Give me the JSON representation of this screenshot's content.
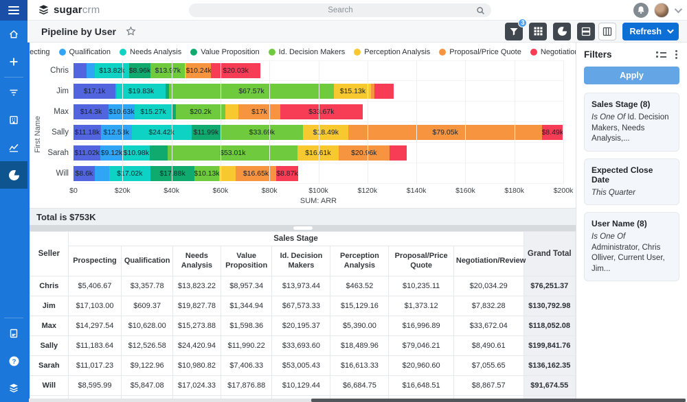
{
  "brand": {
    "bold": "sugar",
    "light": "crm"
  },
  "topnav": {
    "search_placeholder": "Search"
  },
  "page": {
    "title": "Pipeline by User"
  },
  "toolbar": {
    "refresh_label": "Refresh",
    "filter_badge": "3"
  },
  "chart_data": {
    "type": "bar",
    "orientation": "horizontal-stacked",
    "title": "Pipeline by User",
    "xlabel": "SUM: ARR",
    "ylabel": "First Name",
    "xlim_thousands": [
      0,
      200
    ],
    "x_ticks": [
      "$0",
      "$20k",
      "$40k",
      "$60k",
      "$80k",
      "$100k",
      "$120k",
      "$140k",
      "$160k",
      "$180k",
      "$200k"
    ],
    "grid": "vertical",
    "legend_position": "top",
    "categories": [
      "Chris",
      "Jim",
      "Max",
      "Sally",
      "Sarah",
      "Will"
    ],
    "series": [
      {
        "name": "Prospecting",
        "color": "#5264de",
        "values_k": [
          5.41,
          17.1,
          14.3,
          11.18,
          11.02,
          8.6
        ],
        "labels": [
          "",
          "$17.1k",
          "$14.3k",
          "$11.18k",
          "$11.02k",
          "$8.6k"
        ]
      },
      {
        "name": "Qualification",
        "color": "#30a5f5",
        "values_k": [
          3.36,
          0.61,
          10.63,
          12.53,
          9.12,
          5.85
        ],
        "labels": [
          "",
          "",
          "$10.63k",
          "$12.53k",
          "$9.12k",
          ""
        ]
      },
      {
        "name": "Needs Analysis",
        "color": "#0ed2c4",
        "values_k": [
          13.82,
          19.83,
          15.27,
          24.42,
          10.98,
          17.02
        ],
        "labels": [
          "$13.82k",
          "$19.83k",
          "$15.27k",
          "$24.42k",
          "$10.98k",
          "$17.02k"
        ]
      },
      {
        "name": "Value Proposition",
        "color": "#10aa6e",
        "values_k": [
          8.96,
          1.34,
          1.6,
          11.99,
          7.41,
          17.88
        ],
        "labels": [
          "$8.96k",
          "",
          "",
          "$11.99k",
          "",
          "$17.88k"
        ]
      },
      {
        "name": "Id. Decision Makers",
        "color": "#6fcb3d",
        "values_k": [
          13.97,
          67.57,
          20.2,
          33.69,
          53.01,
          10.13
        ],
        "labels": [
          "$13.97k",
          "$67.57k",
          "$20.2k",
          "$33.69k",
          "$53.01k",
          "$10.13k"
        ]
      },
      {
        "name": "Perception Analysis",
        "color": "#f8c831",
        "values_k": [
          0.46,
          15.13,
          5.39,
          18.49,
          16.61,
          6.68
        ],
        "labels": [
          "",
          "$15.13k",
          "",
          "$18.49k",
          "$16.61k",
          ""
        ]
      },
      {
        "name": "Proposal/Price Quote",
        "color": "#f79440",
        "values_k": [
          10.24,
          1.37,
          17.0,
          79.05,
          20.96,
          16.65
        ],
        "labels": [
          "$10.24k",
          "",
          "$17k",
          "$79.05k",
          "$20.96k",
          "$16.65k"
        ]
      },
      {
        "name": "Negotiation/Review",
        "color": "#f63d55",
        "values_k": [
          20.03,
          7.83,
          33.67,
          8.49,
          7.06,
          8.87
        ],
        "labels": [
          "$20.03k",
          "",
          "$33.67k",
          "$8.49k",
          "",
          "$8.87k"
        ]
      }
    ]
  },
  "total_banner": {
    "text": "Total is $753K"
  },
  "table": {
    "col_seller": "Seller",
    "group_header": "Sales Stage",
    "col_grand": "Grand Total",
    "stage_columns": [
      "Prospecting",
      "Qualification",
      "Needs Analysis",
      "Value Proposition",
      "Id. Decision Makers",
      "Perception Analysis",
      "Proposal/Price Quote",
      "Negotiation/Review"
    ],
    "rows": [
      {
        "seller": "Chris",
        "values": [
          "$5,406.67",
          "$3,357.78",
          "$13,823.22",
          "$8,957.34",
          "$13,973.44",
          "$463.52",
          "$10,235.11",
          "$20,034.29"
        ],
        "grand": "$76,251.37"
      },
      {
        "seller": "Jim",
        "values": [
          "$17,103.00",
          "$609.37",
          "$19,827.78",
          "$1,344.94",
          "$67,573.33",
          "$15,129.16",
          "$1,373.12",
          "$7,832.28"
        ],
        "grand": "$130,792.98"
      },
      {
        "seller": "Max",
        "values": [
          "$14,297.54",
          "$10,628.00",
          "$15,273.88",
          "$1,598.36",
          "$20,195.37",
          "$5,390.00",
          "$16,996.89",
          "$33,672.04"
        ],
        "grand": "$118,052.08"
      },
      {
        "seller": "Sally",
        "values": [
          "$11,183.64",
          "$12,526.58",
          "$24,420.94",
          "$11,990.22",
          "$33,693.60",
          "$18,489.96",
          "$79,046.21",
          "$8,490.61"
        ],
        "grand": "$199,841.76"
      },
      {
        "seller": "Sarah",
        "values": [
          "$11,017.23",
          "$9,122.96",
          "$10,980.82",
          "$7,406.33",
          "$53,005.43",
          "$16,613.33",
          "$20,960.60",
          "$7,055.65"
        ],
        "grand": "$136,162.35"
      },
      {
        "seller": "Will",
        "values": [
          "$8,595.99",
          "$5,847.08",
          "$17,024.33",
          "$17,876.88",
          "$10,129.44",
          "$6,684.75",
          "$16,648.51",
          "$8,867.57"
        ],
        "grand": "$91,674.55"
      }
    ]
  },
  "filters_panel": {
    "title": "Filters",
    "apply_label": "Apply",
    "cards": [
      {
        "title": "Sales Stage (8)",
        "operator": "Is One Of",
        "value": "Id. Decision Makers, Needs Analysis,..."
      },
      {
        "title": "Expected Close Date",
        "operator": "This Quarter",
        "value": ""
      },
      {
        "title": "User Name (8)",
        "operator": "Is One Of",
        "value": "Administrator, Chris Olliver, Current User, Jim..."
      }
    ]
  },
  "colors": {
    "accent_blue": "#0c6fd6",
    "apply_blue": "#64a5e5",
    "sidebar_blue": "#1b77d9"
  }
}
